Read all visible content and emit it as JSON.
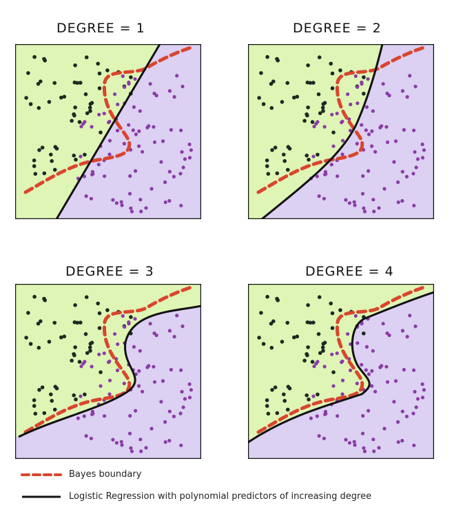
{
  "panels": [
    {
      "title": "DEGREE = 1"
    },
    {
      "title": "DEGREE = 2"
    },
    {
      "title": "DEGREE = 3"
    },
    {
      "title": "DEGREE = 4"
    }
  ],
  "legend": {
    "bayes_label": "Bayes boundary",
    "logistic_label": "Logistic Regression with polynomial predictors of increasing degree"
  },
  "colors": {
    "class_a_region": "#dff5b5",
    "class_b_region": "#dcd0f3",
    "class_a_points": "#1c2a22",
    "class_b_points": "#8a3ca6",
    "bayes_boundary": "#d9452e",
    "logistic_boundary": "#111111"
  }
}
